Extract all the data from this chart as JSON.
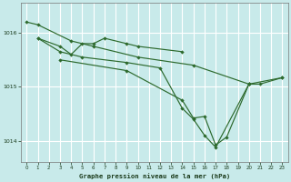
{
  "title": "Graphe pression niveau de la mer (hPa)",
  "background_color": "#c8eaea",
  "grid_color": "#ffffff",
  "line_color": "#2d6a2d",
  "xlim": [
    -0.5,
    23.5
  ],
  "ylim": [
    1013.6,
    1016.55
  ],
  "yticks": [
    1014,
    1015,
    1016
  ],
  "xticks": [
    0,
    1,
    2,
    3,
    4,
    5,
    6,
    7,
    8,
    9,
    10,
    11,
    12,
    13,
    14,
    15,
    16,
    17,
    18,
    19,
    20,
    21,
    22,
    23
  ],
  "series1_x": [
    0,
    1,
    4,
    6,
    10,
    15,
    20,
    23
  ],
  "series1_y": [
    1016.2,
    1016.15,
    1015.85,
    1015.75,
    1015.55,
    1015.4,
    1015.05,
    1015.17
  ],
  "series2_x": [
    1,
    3,
    4,
    5,
    6,
    7,
    9,
    10,
    14
  ],
  "series2_y": [
    1015.9,
    1015.75,
    1015.6,
    1015.8,
    1015.8,
    1015.9,
    1015.8,
    1015.75,
    1015.65
  ],
  "series3_x": [
    1,
    3,
    5,
    9,
    12,
    14,
    15,
    16,
    17,
    20
  ],
  "series3_y": [
    1015.9,
    1015.65,
    1015.55,
    1015.45,
    1015.35,
    1014.6,
    1014.4,
    1014.1,
    1013.88,
    1015.05
  ],
  "series4_x": [
    3,
    9,
    14,
    15,
    16,
    17,
    18,
    20,
    21,
    23
  ],
  "series4_y": [
    1015.5,
    1015.3,
    1014.75,
    1014.42,
    1014.45,
    1013.92,
    1014.07,
    1015.05,
    1015.05,
    1015.17
  ]
}
